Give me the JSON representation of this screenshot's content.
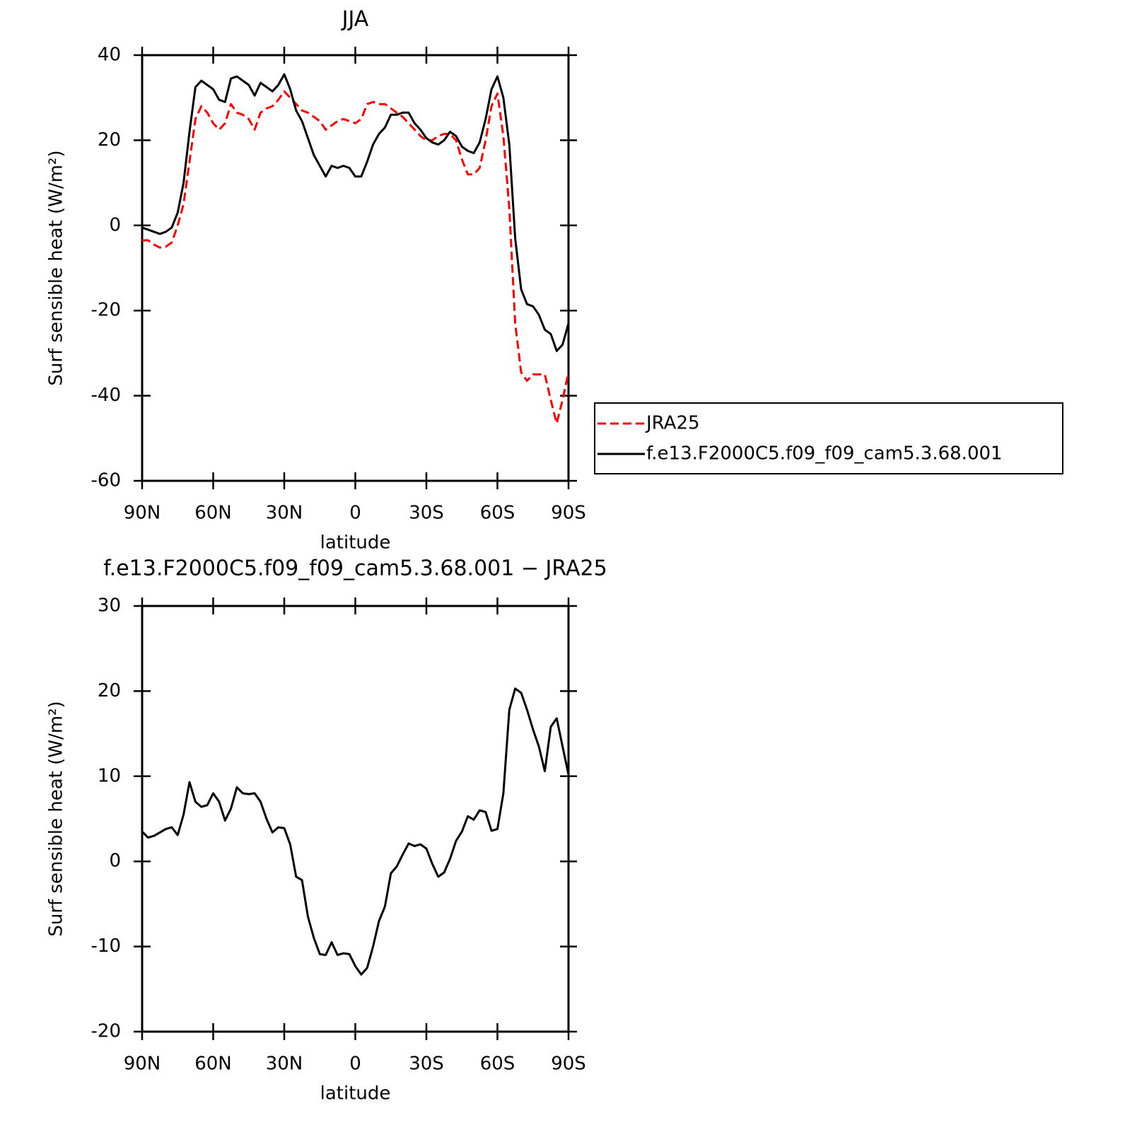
{
  "chart_data": [
    {
      "type": "line",
      "title": "JJA",
      "xlabel": "latitude",
      "ylabel": "Surf sensible heat (W/m²)",
      "xlim": [
        90,
        -90
      ],
      "xticks": [
        {
          "value": 90,
          "label": "90N"
        },
        {
          "value": 60,
          "label": "60N"
        },
        {
          "value": 30,
          "label": "30N"
        },
        0,
        {
          "value": -30,
          "label": "30S"
        },
        {
          "value": -60,
          "label": "60S"
        },
        {
          "value": -90,
          "label": "90S"
        }
      ],
      "ylim": [
        -60,
        40
      ],
      "yticks": [
        -60,
        -40,
        -20,
        0,
        20,
        40
      ],
      "legend": "outside right",
      "x": [
        90,
        87.5,
        85,
        82.5,
        80,
        77.5,
        75,
        72.5,
        70,
        67.5,
        65,
        62.5,
        60,
        57.5,
        55,
        52.5,
        50,
        47.5,
        45,
        42.5,
        40,
        37.5,
        35,
        32.5,
        30,
        27.5,
        25,
        22.5,
        20,
        17.5,
        15,
        12.5,
        10,
        7.5,
        5,
        2.5,
        0,
        -2.5,
        -5,
        -7.5,
        -10,
        -12.5,
        -15,
        -17.5,
        -20,
        -22.5,
        -25,
        -27.5,
        -30,
        -32.5,
        -35,
        -37.5,
        -40,
        -42.5,
        -45,
        -47.5,
        -50,
        -52.5,
        -55,
        -57.5,
        -60,
        -62.5,
        -65,
        -67.5,
        -70,
        -72.5,
        -75,
        -77.5,
        -80,
        -82.5,
        -85,
        -87.5,
        -90
      ],
      "series": [
        {
          "name": "JRA25",
          "color": "#ff0000",
          "dashed": true,
          "values": [
            -3.5,
            -3.5,
            -4.5,
            -5.2,
            -5,
            -4,
            0,
            5,
            15,
            25,
            28,
            26.5,
            24,
            22.5,
            24,
            28.5,
            26.5,
            26,
            25,
            22.5,
            26.5,
            27.5,
            28,
            29.5,
            31.5,
            30,
            28.5,
            27,
            26.5,
            25.5,
            24.5,
            22.5,
            23.5,
            24.5,
            25,
            24.5,
            24,
            25,
            28.5,
            29,
            28.5,
            28.5,
            27.5,
            26.5,
            25.5,
            24,
            22.5,
            21,
            20,
            20,
            21,
            21.5,
            21.5,
            20,
            15.5,
            12,
            12,
            13.5,
            20,
            28,
            31,
            21,
            4,
            -23,
            -34.5,
            -36.5,
            -35,
            -35,
            -35,
            -41,
            -46.5,
            -41,
            -34.5
          ]
        },
        {
          "name": "f.e13.F2000C5.f09_f09_cam5.3.68.001",
          "color": "#000000",
          "dashed": false,
          "values": [
            -0.5,
            -1,
            -1.5,
            -2,
            -1.5,
            -0.5,
            3,
            10,
            22,
            32.5,
            34,
            33,
            32,
            29.5,
            29,
            34.5,
            35,
            34,
            33,
            30.5,
            33.5,
            32.5,
            31.5,
            33,
            35.5,
            32,
            27,
            24.5,
            20.5,
            16.5,
            14,
            11.5,
            14,
            13.5,
            14,
            13.5,
            11.5,
            11.5,
            15,
            19,
            21.5,
            23,
            26,
            26,
            26.5,
            26.5,
            24,
            22.5,
            20.5,
            19.5,
            19,
            20,
            22,
            21,
            18.5,
            17.5,
            17,
            19.5,
            25,
            32,
            35,
            30,
            19,
            -3,
            -15,
            -18.5,
            -19,
            -21,
            -24.5,
            -25.5,
            -29.5,
            -28,
            -23
          ]
        }
      ]
    },
    {
      "type": "line",
      "title": "f.e13.F2000C5.f09_f09_cam5.3.68.001 − JRA25",
      "xlabel": "latitude",
      "ylabel": "Surf sensible heat (W/m²)",
      "xlim": [
        90,
        -90
      ],
      "xticks": [
        {
          "value": 90,
          "label": "90N"
        },
        {
          "value": 60,
          "label": "60N"
        },
        {
          "value": 30,
          "label": "30N"
        },
        0,
        {
          "value": -30,
          "label": "30S"
        },
        {
          "value": -60,
          "label": "60S"
        },
        {
          "value": -90,
          "label": "90S"
        }
      ],
      "ylim": [
        -20,
        30
      ],
      "yticks": [
        -20,
        -10,
        0,
        10,
        20,
        30
      ],
      "x": [
        90,
        87.5,
        85,
        82.5,
        80,
        77.5,
        75,
        72.5,
        70,
        67.5,
        65,
        62.5,
        60,
        57.5,
        55,
        52.5,
        50,
        47.5,
        45,
        42.5,
        40,
        37.5,
        35,
        32.5,
        30,
        27.5,
        25,
        22.5,
        20,
        17.5,
        15,
        12.5,
        10,
        7.5,
        5,
        2.5,
        0,
        -2.5,
        -5,
        -7.5,
        -10,
        -12.5,
        -15,
        -17.5,
        -20,
        -22.5,
        -25,
        -27.5,
        -30,
        -32.5,
        -35,
        -37.5,
        -40,
        -42.5,
        -45,
        -47.5,
        -50,
        -52.5,
        -55,
        -57.5,
        -60,
        -62.5,
        -65,
        -67.5,
        -70,
        -72.5,
        -75,
        -77.5,
        -80,
        -82.5,
        -85,
        -87.5,
        -90
      ],
      "color": "#000000",
      "values": [
        3.5,
        2.8,
        3,
        3.4,
        3.8,
        4,
        3.1,
        5.5,
        9.3,
        7,
        6.4,
        6.6,
        8,
        7,
        4.8,
        6.2,
        8.7,
        8,
        7.9,
        8,
        7,
        5,
        3.4,
        4,
        3.9,
        2,
        -1.8,
        -2.2,
        -6.5,
        -9,
        -10.9,
        -11,
        -9.5,
        -11,
        -10.8,
        -10.9,
        -12.3,
        -13.3,
        -12.5,
        -10,
        -7,
        -5.3,
        -1.4,
        -0.6,
        0.8,
        2.1,
        1.8,
        2,
        1.5,
        -0.3,
        -1.8,
        -1.3,
        0.3,
        2.4,
        3.5,
        5.3,
        4.9,
        6,
        5.8,
        3.6,
        3.8,
        8,
        17.8,
        20.3,
        19.8,
        17.8,
        15.5,
        13.5,
        10.6,
        15.8,
        16.8,
        13.5,
        10.2
      ]
    }
  ]
}
